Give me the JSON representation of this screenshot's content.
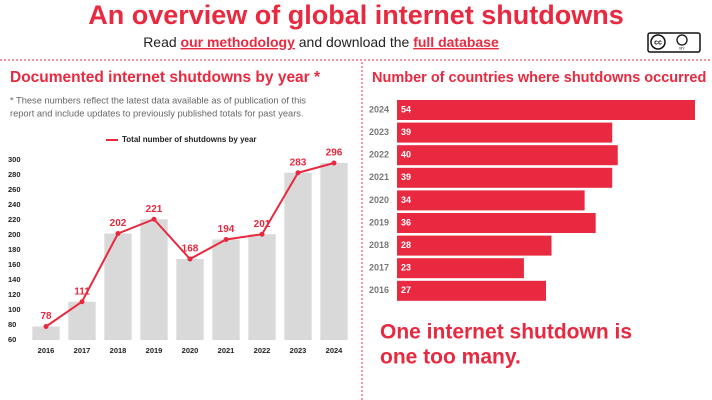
{
  "header": {
    "title": "An overview of global internet shutdowns",
    "subtitle": [
      "Read ",
      "our methodology",
      " and download the ",
      "full database"
    ],
    "license": {
      "cc": "cc",
      "by": "BY"
    }
  },
  "chart_data": [
    {
      "type": "combo",
      "title": "Documented internet shutdowns by year *",
      "note": [
        "* These numbers reflect the latest data available as of publication of this",
        "report and include updates to previously published totals for past years."
      ],
      "categories": [
        "2016",
        "2017",
        "2018",
        "2019",
        "2020",
        "2021",
        "2022",
        "2023",
        "2024"
      ],
      "series": [
        {
          "name": "Total number of shutdowns by year",
          "color": "#e8293f",
          "bar_color": "#d9d9d9",
          "values": [
            78,
            111,
            202,
            221,
            168,
            194,
            201,
            283,
            296
          ]
        }
      ],
      "ylim": [
        60,
        300
      ],
      "yticks": [
        60,
        80,
        100,
        120,
        140,
        160,
        180,
        200,
        220,
        240,
        260,
        280,
        300
      ],
      "grid": false
    },
    {
      "type": "hbar",
      "title": "Number of countries where shutdowns occurred",
      "categories": [
        "2024",
        "2023",
        "2022",
        "2021",
        "2020",
        "2019",
        "2018",
        "2017",
        "2016"
      ],
      "values": [
        54,
        39,
        40,
        39,
        34,
        36,
        28,
        23,
        27
      ],
      "color": "#e8293f"
    }
  ],
  "slogan": [
    "One internet shutdown is",
    "one too many."
  ]
}
